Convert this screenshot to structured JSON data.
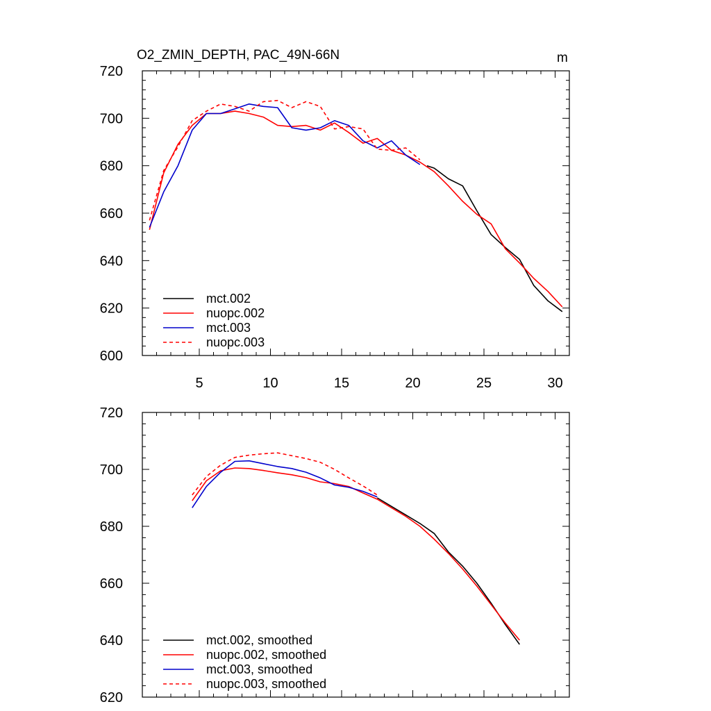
{
  "chart_data": [
    {
      "type": "line",
      "title": "O2_ZMIN_DEPTH, PAC_49N-66N",
      "units": "m",
      "xlabel": "",
      "ylabel": "",
      "xlim": [
        1,
        31
      ],
      "ylim": [
        600,
        720
      ],
      "xticks": [
        5,
        10,
        15,
        20,
        25,
        30
      ],
      "yticks": [
        600,
        620,
        640,
        660,
        680,
        700,
        720
      ],
      "show_xtick_labels": true,
      "grid": false,
      "legend_position": "bottom-left",
      "series": [
        {
          "name": "mct.002",
          "color": "#000000",
          "dash": "solid",
          "x": [
            21,
            21.5,
            22.5,
            23.5,
            24.5,
            25.5,
            26.5,
            27.5,
            28.5,
            29.5,
            30.5
          ],
          "y": [
            680,
            679,
            674.5,
            671.5,
            661,
            651,
            645.5,
            640.5,
            629.5,
            623,
            618.5
          ]
        },
        {
          "name": "nuopc.002",
          "color": "#ff0000",
          "dash": "solid",
          "x": [
            1.5,
            2.5,
            3.5,
            4.5,
            5.5,
            6.5,
            7.5,
            8.5,
            9.5,
            10.5,
            11.5,
            12.5,
            13.5,
            14.5,
            15.5,
            16.5,
            17.5,
            18.5,
            19.5,
            20.5,
            21.5,
            22.5,
            23.5,
            24.5,
            25.5,
            26.5,
            27.5,
            28.5,
            29.5,
            30.5
          ],
          "y": [
            653,
            677,
            689,
            697,
            702,
            702,
            703,
            702,
            700.5,
            697,
            696.5,
            697,
            695,
            698,
            694,
            689.5,
            691.5,
            686.5,
            684.5,
            681.5,
            677.5,
            671.5,
            665,
            659.5,
            655.5,
            645,
            639,
            632.5,
            627,
            620.5
          ]
        },
        {
          "name": "mct.003",
          "color": "#0000cc",
          "dash": "solid",
          "x": [
            1.5,
            2.5,
            3.5,
            4.5,
            5.5,
            6.5,
            7.5,
            8.5,
            9.5,
            10.5,
            11.5,
            12.5,
            13.5,
            14.5,
            15.5,
            16.5,
            17.5,
            18.5,
            19.5,
            20.5
          ],
          "y": [
            654,
            669,
            680,
            695,
            702,
            702,
            704,
            706,
            705,
            704.5,
            696,
            695,
            696,
            699,
            697,
            690.5,
            687.5,
            690.5,
            684.5,
            680.5
          ]
        },
        {
          "name": "nuopc.003",
          "color": "#ff0000",
          "dash": "dashed",
          "x": [
            1.5,
            2.5,
            3.5,
            4.5,
            5.5,
            6.5,
            7.5,
            8.5,
            9.5,
            10.5,
            11.5,
            12.5,
            13.5,
            14.5,
            15.5,
            16.5,
            17.5,
            18.5,
            19.5,
            20.5
          ],
          "y": [
            657,
            678,
            688,
            699,
            703,
            706,
            705,
            703,
            707,
            707.5,
            704.5,
            707,
            705,
            695.5,
            696.5,
            695.5,
            687,
            686.5,
            687.5,
            682.5
          ]
        }
      ]
    },
    {
      "type": "line",
      "title": "",
      "xlabel": "",
      "ylabel": "",
      "xlim": [
        1,
        31
      ],
      "ylim": [
        620,
        720
      ],
      "xticks": [
        5,
        10,
        15,
        20,
        25,
        30
      ],
      "yticks": [
        620,
        640,
        660,
        680,
        700,
        720
      ],
      "show_xtick_labels": false,
      "grid": false,
      "legend_position": "bottom-left",
      "series": [
        {
          "name": "mct.002, smoothed",
          "color": "#000000",
          "dash": "solid",
          "x": [
            17.5,
            18.5,
            19.5,
            20.5,
            21.5,
            22.5,
            23.5,
            24.5,
            25.5,
            26.5,
            27.5
          ],
          "y": [
            690,
            687,
            684,
            681,
            677.5,
            671,
            666,
            660,
            653,
            645.5,
            638.5
          ]
        },
        {
          "name": "nuopc.002, smoothed",
          "color": "#ff0000",
          "dash": "solid",
          "x": [
            4.5,
            5.5,
            6.5,
            7.5,
            8.5,
            9.5,
            10.5,
            11.5,
            12.5,
            13.5,
            14.5,
            15.5,
            16.5,
            17.5,
            18.5,
            19.5,
            20.5,
            21.5,
            22.5,
            23.5,
            24.5,
            25.5,
            26.5,
            27.5
          ],
          "y": [
            689,
            696,
            699.5,
            700.5,
            700.3,
            699.6,
            698.8,
            698.1,
            697.1,
            695.6,
            695,
            694,
            691.7,
            689.5,
            686.5,
            683.5,
            680,
            675.5,
            670.5,
            665,
            659,
            652.5,
            646,
            640
          ]
        },
        {
          "name": "mct.003, smoothed",
          "color": "#0000cc",
          "dash": "solid",
          "x": [
            4.5,
            5.5,
            6.5,
            7.5,
            8.5,
            9.5,
            10.5,
            11.5,
            12.5,
            13.5,
            14.5,
            15.5,
            16.5,
            17.5
          ],
          "y": [
            686.5,
            694,
            699,
            702.8,
            703,
            702,
            701,
            700.3,
            699,
            697,
            694.5,
            693.7,
            692.3,
            690.3
          ]
        },
        {
          "name": "nuopc.003, smoothed",
          "color": "#ff0000",
          "dash": "dashed",
          "x": [
            4.5,
            5.5,
            6.5,
            7.5,
            8.5,
            9.5,
            10.5,
            11.5,
            12.5,
            13.5,
            14.5,
            15.5,
            16.5,
            17.5
          ],
          "y": [
            691,
            697.5,
            701.5,
            704.2,
            705,
            705.5,
            705.8,
            704.8,
            703.8,
            702.5,
            700,
            697,
            694.2,
            691
          ]
        }
      ]
    }
  ]
}
